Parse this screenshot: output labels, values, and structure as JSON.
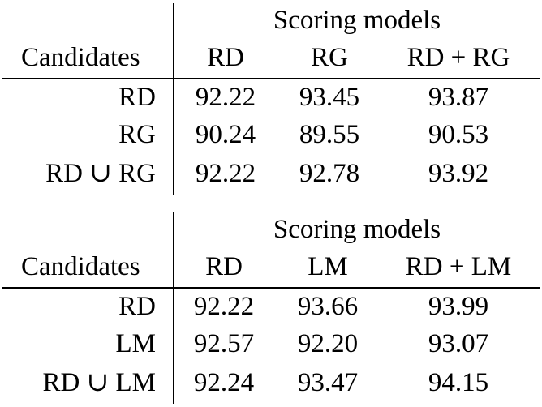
{
  "tables": [
    {
      "group_header": "Scoring models",
      "row_header": "Candidates",
      "columns": [
        "RD",
        "RG",
        "RD + RG"
      ],
      "rows": [
        {
          "label": "RD",
          "values": [
            "92.22",
            "93.45",
            "93.87"
          ]
        },
        {
          "label": "RG",
          "values": [
            "90.24",
            "89.55",
            "90.53"
          ]
        },
        {
          "label": "RD ∪ RG",
          "values": [
            "92.22",
            "92.78",
            "93.92"
          ]
        }
      ]
    },
    {
      "group_header": "Scoring models",
      "row_header": "Candidates",
      "columns": [
        "RD",
        "LM",
        "RD + LM"
      ],
      "rows": [
        {
          "label": "RD",
          "values": [
            "92.22",
            "93.66",
            "93.99"
          ]
        },
        {
          "label": "LM",
          "values": [
            "92.57",
            "92.20",
            "93.07"
          ]
        },
        {
          "label": "RD ∪ LM",
          "values": [
            "92.24",
            "93.47",
            "94.15"
          ]
        }
      ]
    }
  ]
}
